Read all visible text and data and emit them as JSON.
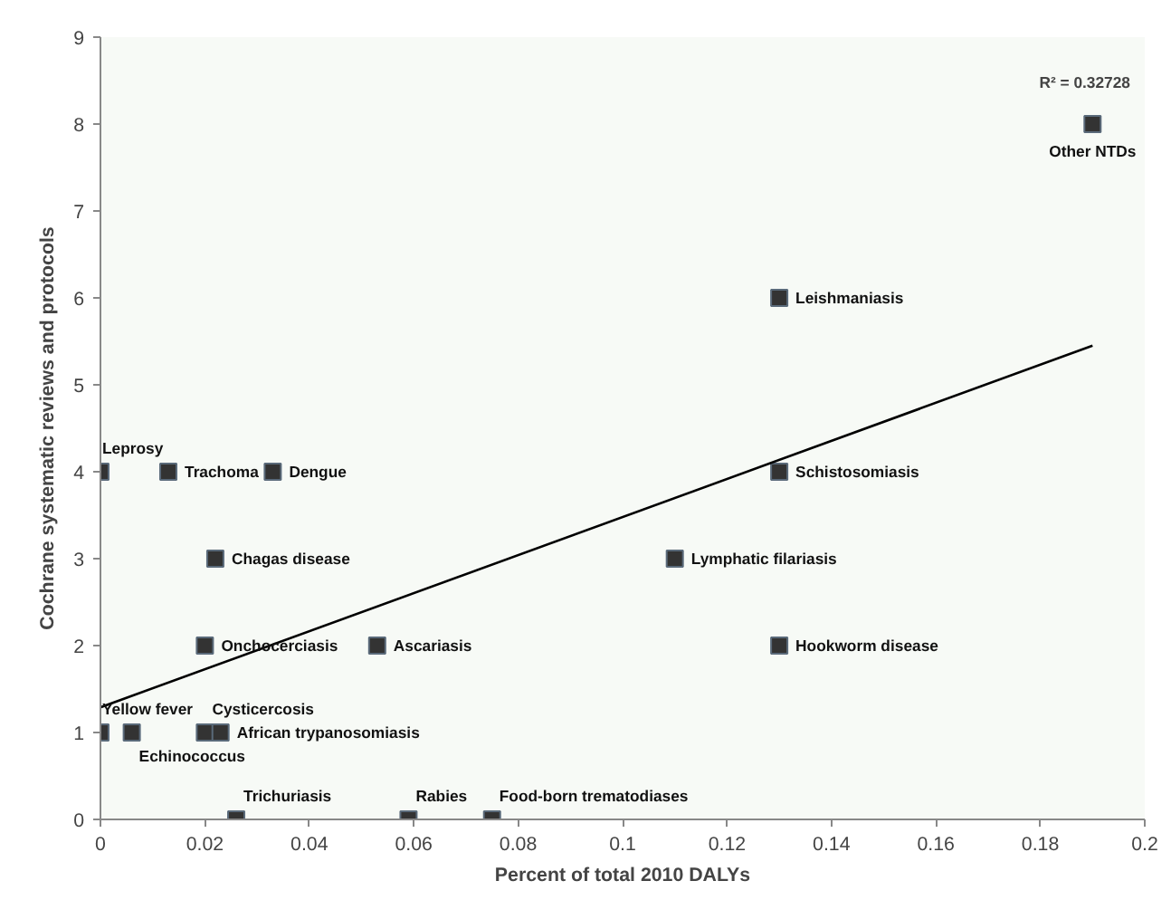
{
  "chart_data": {
    "type": "scatter",
    "xlabel": "Percent of total 2010 DALYs",
    "ylabel": "Cochrane systematic reviews and protocols",
    "xlim": [
      0,
      0.2
    ],
    "ylim": [
      0,
      9
    ],
    "xticks": [
      0,
      0.02,
      0.04,
      0.06,
      0.08,
      0.1,
      0.12,
      0.14,
      0.16,
      0.18,
      0.2
    ],
    "yticks": [
      0,
      1,
      2,
      3,
      4,
      5,
      6,
      7,
      8,
      9
    ],
    "grid": false,
    "series": [
      {
        "marker": "square",
        "color": "#333333",
        "x": [
          0,
          0.013,
          0.033,
          0.022,
          0.02,
          0.053,
          0,
          0.006,
          0.02,
          0.023,
          0.026,
          0.059,
          0.075,
          0.13,
          0.13,
          0.11,
          0.13,
          0.19
        ],
        "values": [
          4,
          4,
          4,
          3,
          2,
          2,
          1,
          1,
          1,
          1,
          0,
          0,
          0,
          6,
          4,
          3,
          2,
          8
        ]
      },
      {
        "type": "line",
        "color": "#000000",
        "x": [
          0,
          0.19
        ],
        "values": [
          1.29,
          5.45
        ]
      }
    ],
    "annotations": [
      {
        "text": "Leprosy",
        "x": 0,
        "y": 4
      },
      {
        "text": "Trachoma",
        "x": 0.013,
        "y": 4
      },
      {
        "text": "Dengue",
        "x": 0.033,
        "y": 4
      },
      {
        "text": "Chagas disease",
        "x": 0.022,
        "y": 3
      },
      {
        "text": "Onchocerciasis",
        "x": 0.02,
        "y": 2
      },
      {
        "text": "Ascariasis",
        "x": 0.053,
        "y": 2
      },
      {
        "text": "Yellow fever",
        "x": 0,
        "y": 1
      },
      {
        "text": "Echinococcus",
        "x": 0.006,
        "y": 1
      },
      {
        "text": "Cysticercosis",
        "x": 0.02,
        "y": 1
      },
      {
        "text": "African trypanosomiasis",
        "x": 0.023,
        "y": 1
      },
      {
        "text": "Trichuriasis",
        "x": 0.026,
        "y": 0
      },
      {
        "text": "Rabies",
        "x": 0.059,
        "y": 0
      },
      {
        "text": "Food-born trematodiases",
        "x": 0.075,
        "y": 0
      },
      {
        "text": "Leishmaniasis",
        "x": 0.13,
        "y": 6
      },
      {
        "text": "Schistosomiasis",
        "x": 0.13,
        "y": 4
      },
      {
        "text": "Lymphatic filariasis",
        "x": 0.11,
        "y": 3
      },
      {
        "text": "Hookworm disease",
        "x": 0.13,
        "y": 2
      },
      {
        "text": "Other NTDs",
        "x": 0.19,
        "y": 8
      },
      "R² = 0.32728"
    ]
  }
}
